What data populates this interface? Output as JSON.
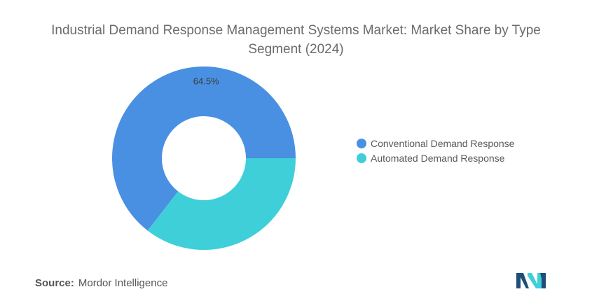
{
  "title": "Industrial Demand Response Management Systems Market: Market Share by Type Segment (2024)",
  "source": {
    "label": "Source:",
    "value": "Mordor Intelligence"
  },
  "colors": {
    "conventional": "#4a90e2",
    "automated": "#3ecfd9"
  },
  "chart_data": {
    "type": "pie",
    "donut": true,
    "title": "Industrial Demand Response Management Systems Market: Market Share by Type Segment (2024)",
    "categories": [
      "Conventional Demand Response",
      "Automated Demand Response"
    ],
    "values": [
      64.5,
      35.5
    ],
    "data_labels": [
      "64.5%",
      ""
    ],
    "legend_position": "right"
  }
}
